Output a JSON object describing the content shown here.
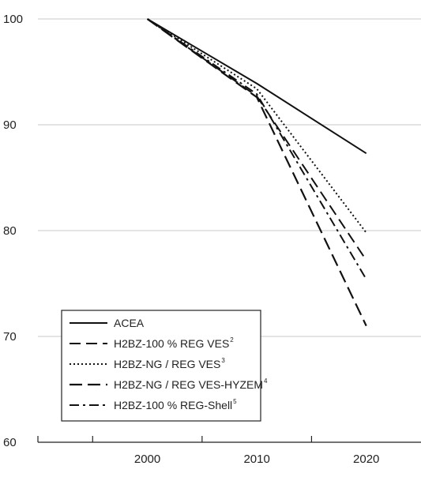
{
  "chart_data": {
    "type": "line",
    "title": "",
    "xlabel": "",
    "ylabel": "",
    "categories": [
      "2000",
      "2010",
      "2020"
    ],
    "x": [
      2000,
      2010,
      2020
    ],
    "xlim": [
      1990,
      2025
    ],
    "ylim": [
      60,
      100
    ],
    "yticks": [
      60,
      70,
      80,
      90,
      100
    ],
    "grid": "horizontal",
    "legend_position": "lower-left",
    "series": [
      {
        "name": "ACEA",
        "sup": "",
        "style": "solid",
        "values": [
          100,
          93.9,
          87.3
        ]
      },
      {
        "name": "H2BZ-100 % REG VES",
        "sup": "2",
        "style": "long-dash",
        "values": [
          100,
          92.7,
          77.2
        ]
      },
      {
        "name": "H2BZ-NG / REG VES",
        "sup": "3",
        "style": "dotted",
        "values": [
          100,
          93.4,
          79.8
        ]
      },
      {
        "name": "H2BZ-NG / REG VES-HYZEM",
        "sup": "4",
        "style": "long-dash-heavy",
        "values": [
          100,
          92.6,
          71.0
        ]
      },
      {
        "name": "H2BZ-100 % REG-Shell",
        "sup": "5",
        "style": "dash-dot",
        "values": [
          100,
          92.9,
          75.4
        ]
      }
    ]
  }
}
